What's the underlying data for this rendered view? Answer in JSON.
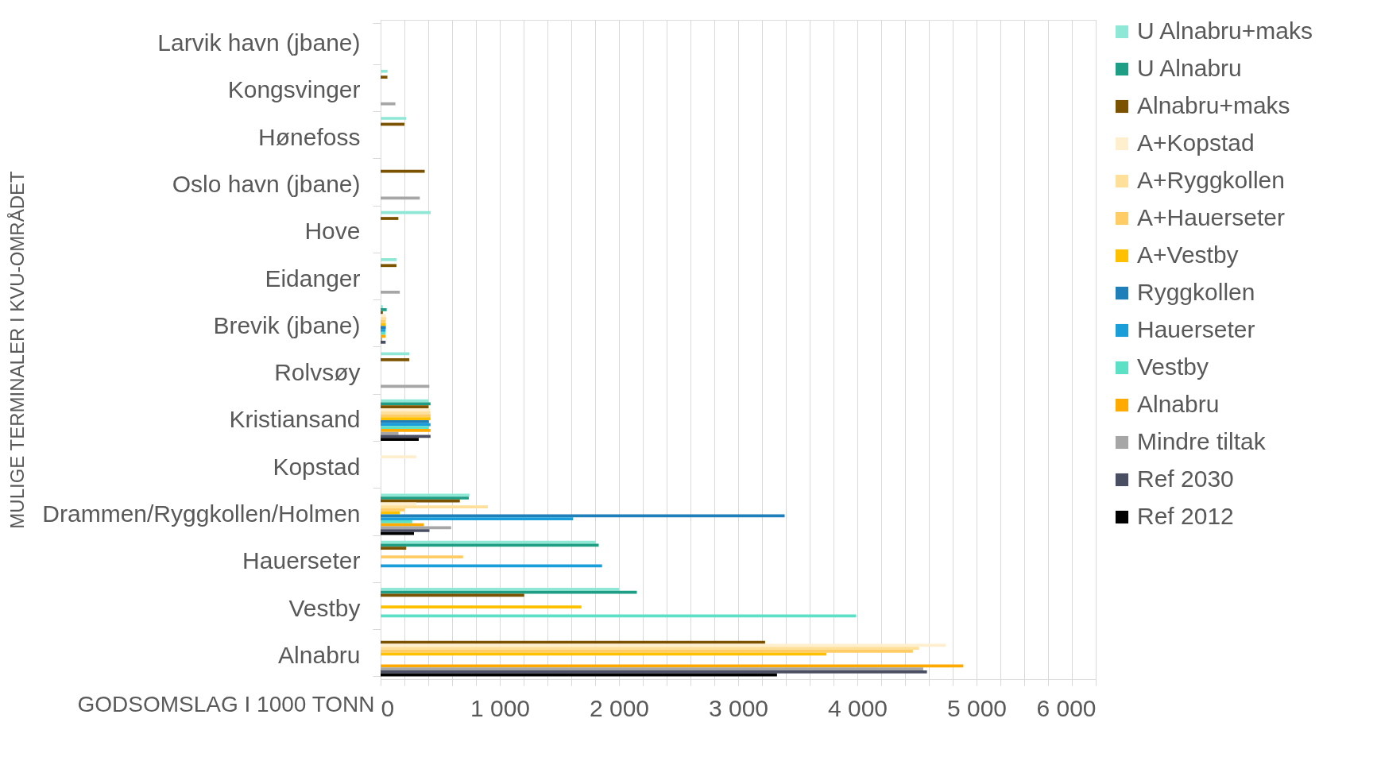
{
  "chart_data": {
    "type": "bar",
    "orientation": "horizontal",
    "xlabel": "GODSOMSLAG I 1000 TONN",
    "ylabel": "MULIGE TERMINALER I KVU-OMRÅDET",
    "categories": [
      "Larvik havn (jbane)",
      "Kongsvinger",
      "Hønefoss",
      "Oslo havn (jbane)",
      "Hove",
      "Eidanger",
      "Brevik (jbane)",
      "Rolvsøy",
      "Kristiansand",
      "Kopstad",
      "Drammen/Ryggkollen/Holmen",
      "Hauerseter",
      "Vestby",
      "Alnabru"
    ],
    "xlim": [
      0,
      6000
    ],
    "xticks": [
      0,
      {
        "value": 200,
        "label": null
      },
      {
        "value": 400,
        "label": null
      },
      {
        "value": 600,
        "label": null
      },
      {
        "value": 800,
        "label": null
      },
      {
        "value": 1000,
        "label": "1 000"
      },
      {
        "value": 1200,
        "label": null
      },
      {
        "value": 1400,
        "label": null
      },
      {
        "value": 1600,
        "label": null
      },
      {
        "value": 1800,
        "label": null
      },
      {
        "value": 2000,
        "label": "2 000"
      },
      {
        "value": 2200,
        "label": null
      },
      {
        "value": 2400,
        "label": null
      },
      {
        "value": 2600,
        "label": null
      },
      {
        "value": 2800,
        "label": null
      },
      {
        "value": 3000,
        "label": "3 000"
      },
      {
        "value": 3200,
        "label": null
      },
      {
        "value": 3400,
        "label": null
      },
      {
        "value": 3600,
        "label": null
      },
      {
        "value": 3800,
        "label": null
      },
      {
        "value": 4000,
        "label": "4 000"
      },
      {
        "value": 4200,
        "label": null
      },
      {
        "value": 4400,
        "label": null
      },
      {
        "value": 4600,
        "label": null
      },
      {
        "value": 4800,
        "label": null
      },
      {
        "value": 5000,
        "label": "5 000"
      },
      {
        "value": 5200,
        "label": null
      },
      {
        "value": 5400,
        "label": null
      },
      {
        "value": 5600,
        "label": null
      },
      {
        "value": 5800,
        "label": null
      },
      {
        "value": 6000,
        "label": "6 000"
      }
    ],
    "grid": "x",
    "legend": "right",
    "series": [
      {
        "name": "U Alnabru+maks",
        "color": "#8fe8d6",
        "values": [
          null,
          58,
          214,
          null,
          420,
          133,
          19,
          241,
          400,
          null,
          745,
          1805,
          2000,
          null
        ]
      },
      {
        "name": "U Alnabru",
        "color": "#1e9e84",
        "values": [
          null,
          null,
          null,
          null,
          null,
          null,
          51,
          null,
          419,
          null,
          740,
          1830,
          2150,
          null
        ]
      },
      {
        "name": "Alnabru+maks",
        "color": "#7b5200",
        "values": [
          null,
          57,
          200,
          370,
          149,
          133,
          19,
          241,
          402,
          null,
          665,
          215,
          1205,
          3226
        ]
      },
      {
        "name": "A+Kopstad",
        "color": "#ffefcf",
        "values": [
          null,
          null,
          null,
          null,
          null,
          null,
          44,
          null,
          414,
          301,
          300,
          null,
          null,
          4743
        ]
      },
      {
        "name": "A+Ryggkollen",
        "color": "#ffe09a",
        "values": [
          null,
          null,
          null,
          null,
          null,
          null,
          48,
          null,
          418,
          null,
          900,
          null,
          null,
          4517
        ]
      },
      {
        "name": "A+Hauerseter",
        "color": "#ffcc66",
        "values": [
          null,
          null,
          null,
          null,
          null,
          null,
          42,
          null,
          419,
          null,
          200,
          692,
          null,
          4466
        ]
      },
      {
        "name": "A+Vestby",
        "color": "#ffc000",
        "values": [
          null,
          null,
          null,
          null,
          null,
          null,
          44,
          null,
          419,
          null,
          160,
          null,
          1685,
          3741
        ]
      },
      {
        "name": "Ryggkollen",
        "color": "#1f7fb8",
        "values": [
          null,
          null,
          null,
          null,
          null,
          null,
          44,
          null,
          405,
          null,
          3390,
          null,
          null,
          null
        ]
      },
      {
        "name": "Hauerseter",
        "color": "#1a9ed9",
        "values": [
          null,
          null,
          null,
          null,
          null,
          null,
          42,
          null,
          419,
          null,
          1615,
          1858,
          null,
          null
        ]
      },
      {
        "name": "Vestby",
        "color": "#5ce0c6",
        "values": [
          null,
          null,
          null,
          null,
          null,
          null,
          41,
          null,
          404,
          null,
          265,
          null,
          3990,
          null
        ]
      },
      {
        "name": "Alnabru",
        "color": "#ffaa00",
        "values": [
          null,
          null,
          null,
          null,
          null,
          null,
          42,
          null,
          419,
          null,
          363,
          null,
          null,
          4889
        ]
      },
      {
        "name": "Mindre tiltak",
        "color": "#a6a6a6",
        "values": [
          null,
          124,
          null,
          329,
          null,
          161,
          14,
          409,
          150,
          null,
          592,
          null,
          null,
          4553
        ]
      },
      {
        "name": "Ref 2030",
        "color": "#4a4e63",
        "values": [
          null,
          null,
          null,
          null,
          null,
          null,
          42,
          null,
          419,
          null,
          410,
          null,
          null,
          4584
        ]
      },
      {
        "name": "Ref 2012",
        "color": "#000000",
        "values": [
          null,
          null,
          null,
          null,
          null,
          null,
          null,
          null,
          320,
          null,
          280,
          null,
          null,
          3326
        ]
      }
    ]
  }
}
